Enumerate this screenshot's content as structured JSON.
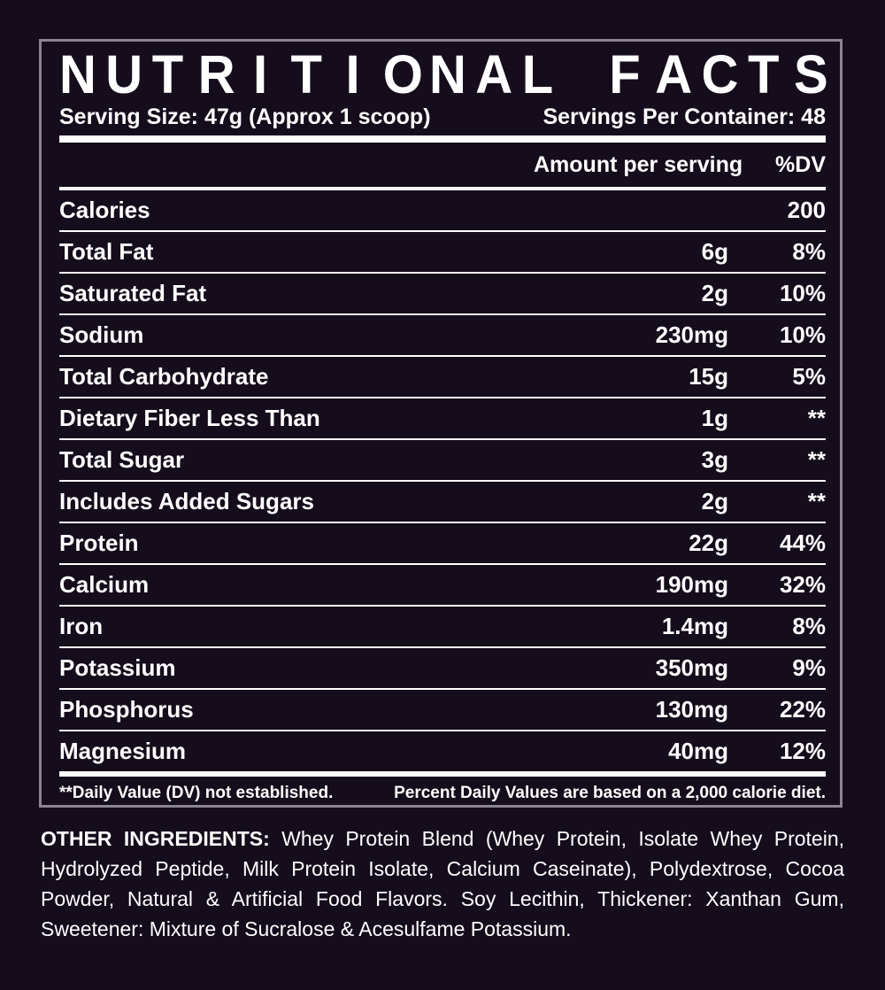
{
  "title": [
    "N",
    "U",
    "T",
    "R",
    "I",
    "T",
    "I",
    "O",
    "N",
    "A",
    "L",
    " ",
    "F",
    "A",
    "C",
    "T",
    "S"
  ],
  "serving_size": "Serving Size: 47g (Approx 1 scoop)",
  "servings_per_container": "Servings Per Container: 48",
  "header": {
    "amount": "Amount per serving",
    "dv": "%DV"
  },
  "rows": [
    {
      "name": "Calories",
      "amount": "",
      "dv": "200"
    },
    {
      "name": "Total Fat",
      "amount": "6g",
      "dv": "8%"
    },
    {
      "name": "Saturated Fat",
      "amount": "2g",
      "dv": "10%"
    },
    {
      "name": "Sodium",
      "amount": "230mg",
      "dv": "10%"
    },
    {
      "name": "Total Carbohydrate",
      "amount": "15g",
      "dv": "5%"
    },
    {
      "name": "Dietary Fiber Less Than",
      "amount": "1g",
      "dv": "**"
    },
    {
      "name": "Total Sugar",
      "amount": "3g",
      "dv": "**"
    },
    {
      "name": "Includes Added Sugars",
      "amount": "2g",
      "dv": "**"
    },
    {
      "name": "Protein",
      "amount": "22g",
      "dv": "44%"
    },
    {
      "name": "Calcium",
      "amount": "190mg",
      "dv": "32%"
    },
    {
      "name": "Iron",
      "amount": "1.4mg",
      "dv": "8%"
    },
    {
      "name": "Potassium",
      "amount": "350mg",
      "dv": "9%"
    },
    {
      "name": "Phosphorus",
      "amount": "130mg",
      "dv": "22%"
    },
    {
      "name": "Magnesium",
      "amount": "40mg",
      "dv": "12%"
    }
  ],
  "footnote_left": "**Daily Value (DV) not established.",
  "footnote_right": "Percent Daily Values are based on a 2,000 calorie diet.",
  "ingredients_label": "OTHER INGREDIENTS:",
  "ingredients_text": " Whey Protein Blend (Whey Protein, Isolate Whey Protein, Hydrolyzed Peptide, Milk Protein Isolate, Calcium Caseinate), Polydextrose, Cocoa Powder, Natural & Artificial Food Flavors. Soy Lecithin, Thickener: Xanthan Gum, Sweetener: Mixture of Sucralose & Acesulfame Potassium."
}
